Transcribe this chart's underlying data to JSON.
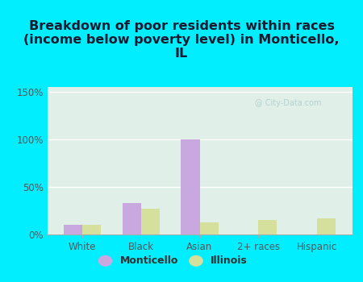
{
  "title": "Breakdown of poor residents within races\n(income below poverty level) in Monticello,\nIL",
  "categories": [
    "White",
    "Black",
    "Asian",
    "2+ races",
    "Hispanic"
  ],
  "monticello_values": [
    10,
    33,
    100,
    0,
    0
  ],
  "illinois_values": [
    10,
    27,
    12,
    15,
    17
  ],
  "monticello_color": "#c9a8e0",
  "illinois_color": "#d4e09b",
  "background_outer": "#00eeff",
  "background_plot_top": "#e0f0e8",
  "background_plot_bottom": "#f5f5e8",
  "ylim": [
    0,
    155
  ],
  "yticks": [
    0,
    50,
    100,
    150
  ],
  "ytick_labels": [
    "0%",
    "50%",
    "100%",
    "150%"
  ],
  "title_fontsize": 11.5,
  "bar_width": 0.32,
  "legend_labels": [
    "Monticello",
    "Illinois"
  ],
  "watermark": "@ City-Data.com"
}
